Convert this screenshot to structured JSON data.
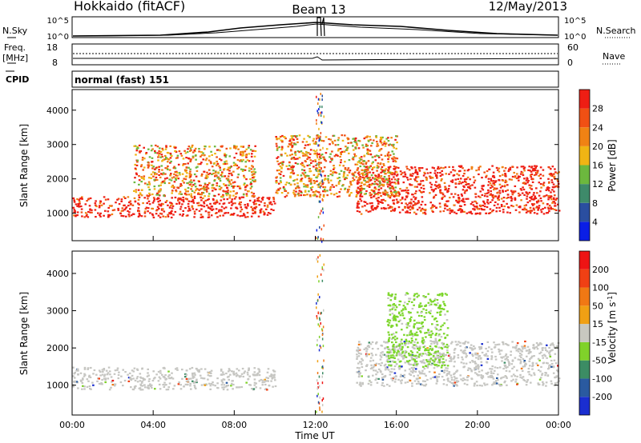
{
  "header": {
    "station": "Hokkaido (fitACF)",
    "beam": "Beam 13",
    "date": "12/May/2013"
  },
  "strip": {
    "nsky_label": "N.Sky",
    "nsky_ticks": [
      "10^5",
      "10^0"
    ],
    "nsearch_label": "N.Search",
    "nsearch_ticks": [
      "10^5",
      "10^0"
    ],
    "freq_label_1": "Freq.",
    "freq_label_2": "[MHz]",
    "freq_ticks": [
      "18",
      "8"
    ],
    "nave_label": "Nave",
    "nave_ticks": [
      "60",
      "0"
    ],
    "cpid_label": "CPID",
    "cpid_value": "normal (fast) 151"
  },
  "chart_data": [
    {
      "type": "heatmap",
      "name": "power",
      "ylabel": "Slant Range [km]",
      "yticks": [
        1000,
        2000,
        3000,
        4000
      ],
      "ylim": [
        200,
        4600
      ],
      "xlim": [
        "00:00",
        "24:00"
      ],
      "colorbar": {
        "label": "Power [dB]",
        "ticks": [
          "4",
          "8",
          "12",
          "16",
          "20",
          "24",
          "28"
        ],
        "colors": [
          "#0a1ee6",
          "#2a4ea0",
          "#3e8a6a",
          "#6cb83e",
          "#f0b414",
          "#f08214",
          "#f05014",
          "#ee1e14"
        ]
      },
      "bands": [
        {
          "t": [
            0,
            10
          ],
          "r": [
            900,
            1500
          ],
          "level": "high"
        },
        {
          "t": [
            14,
            24
          ],
          "r": [
            1000,
            2400
          ],
          "level": "high"
        },
        {
          "t": [
            10,
            16
          ],
          "r": [
            1500,
            3300
          ],
          "level": "mid"
        },
        {
          "t": [
            3,
            9
          ],
          "r": [
            1500,
            3000
          ],
          "level": "mid"
        }
      ]
    },
    {
      "type": "heatmap",
      "name": "velocity",
      "ylabel": "Slant Range [km]",
      "yticks": [
        1000,
        2000,
        3000,
        4000
      ],
      "ylim": [
        200,
        4600
      ],
      "xlabel": "Time UT",
      "xticks": [
        "00:00",
        "04:00",
        "08:00",
        "12:00",
        "16:00",
        "20:00",
        "00:00"
      ],
      "colorbar": {
        "label": "Velocity [m s",
        "label_sup": "-1",
        "label_end": "]",
        "ticks": [
          "200",
          "100",
          "50",
          "15",
          "-15",
          "-50",
          "-100",
          "-200"
        ],
        "colors": [
          "#1a2ed0",
          "#2a5aa0",
          "#3c8c64",
          "#80d22a",
          "#c8c8c0",
          "#f0a014",
          "#f07814",
          "#f04014",
          "#ee1414"
        ]
      },
      "bands": [
        {
          "t": [
            0,
            10
          ],
          "r": [
            900,
            1500
          ],
          "level": "ground"
        },
        {
          "t": [
            14,
            24
          ],
          "r": [
            1000,
            2200
          ],
          "level": "ground"
        },
        {
          "t": [
            15.5,
            18.5
          ],
          "r": [
            1500,
            3500
          ],
          "level": "toward"
        }
      ]
    }
  ],
  "colors": {
    "ground": "#c6c6c2",
    "toward": "#7cd62a"
  }
}
